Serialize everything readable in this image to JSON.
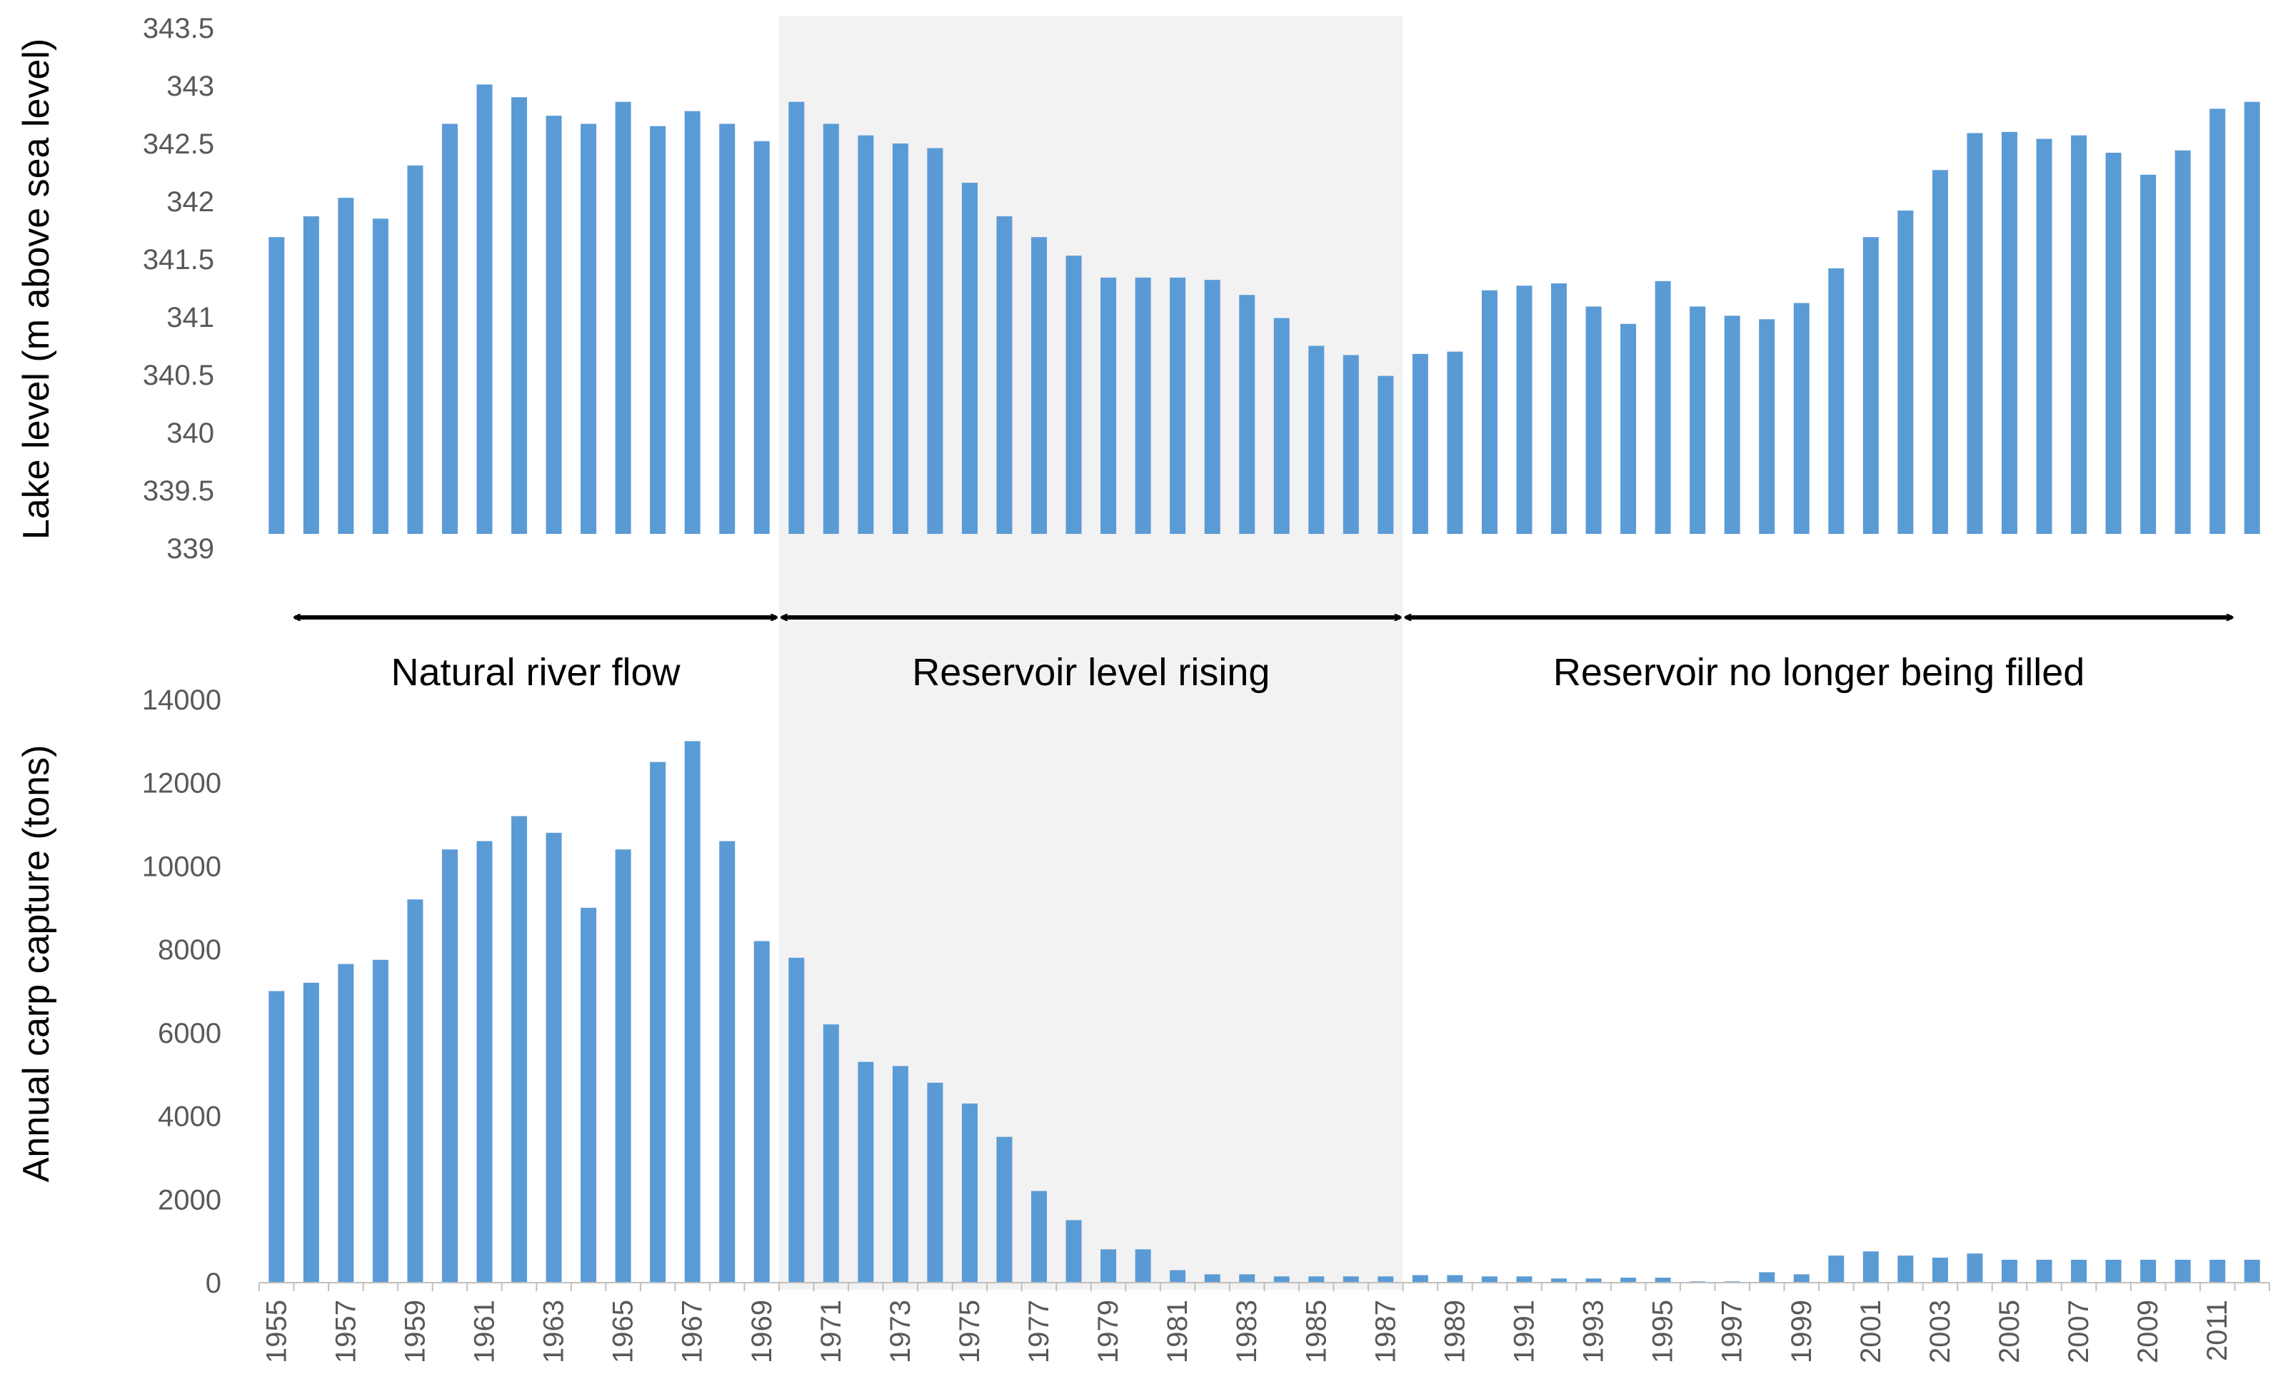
{
  "chart_data": [
    {
      "type": "bar",
      "title": "",
      "xlabel": "",
      "ylabel": "Lake level (m above sea level)",
      "ylim": [
        339,
        343.5
      ],
      "ytick_labels": [
        "339",
        "339.5",
        "340",
        "340.5",
        "341",
        "341.5",
        "342",
        "342.5",
        "343",
        "343.5"
      ],
      "grid": false,
      "bar_color": "#5b9bd5",
      "x": [
        1955,
        1956,
        1957,
        1958,
        1959,
        1960,
        1961,
        1962,
        1963,
        1964,
        1965,
        1966,
        1967,
        1968,
        1969,
        1970,
        1971,
        1972,
        1973,
        1974,
        1975,
        1976,
        1977,
        1978,
        1979,
        1980,
        1981,
        1982,
        1983,
        1984,
        1985,
        1986,
        1987,
        1988,
        1989,
        1990,
        1991,
        1992,
        1993,
        1994,
        1995,
        1996,
        1997,
        1998,
        1999,
        2000,
        2001,
        2002,
        2003,
        2004,
        2005,
        2006,
        2007,
        2008,
        2009,
        2010,
        2011,
        2012
      ],
      "values": [
        341.69,
        341.87,
        342.03,
        341.85,
        342.31,
        342.67,
        343.01,
        342.9,
        342.74,
        342.67,
        342.86,
        342.65,
        342.78,
        342.67,
        342.52,
        342.86,
        342.67,
        342.57,
        342.5,
        342.46,
        342.16,
        341.87,
        341.69,
        341.53,
        341.34,
        341.34,
        341.34,
        341.32,
        341.19,
        340.99,
        340.75,
        340.67,
        340.49,
        340.68,
        340.7,
        341.23,
        341.27,
        341.29,
        341.09,
        340.94,
        341.31,
        341.09,
        341.01,
        340.98,
        341.12,
        341.42,
        341.69,
        341.92,
        342.27,
        342.59,
        342.6,
        342.54,
        342.57,
        342.42,
        342.23,
        342.44,
        342.8,
        342.86
      ]
    },
    {
      "type": "bar",
      "title": "",
      "xlabel": "",
      "ylabel": "Annual carp capture (tons)",
      "ylim": [
        0,
        14000
      ],
      "ytick_labels": [
        "0",
        "2000",
        "4000",
        "6000",
        "8000",
        "10000",
        "12000",
        "14000"
      ],
      "grid": false,
      "bar_color": "#5b9bd5",
      "x": [
        1955,
        1956,
        1957,
        1958,
        1959,
        1960,
        1961,
        1962,
        1963,
        1964,
        1965,
        1966,
        1967,
        1968,
        1969,
        1970,
        1971,
        1972,
        1973,
        1974,
        1975,
        1976,
        1977,
        1978,
        1979,
        1980,
        1981,
        1982,
        1983,
        1984,
        1985,
        1986,
        1987,
        1988,
        1989,
        1990,
        1991,
        1992,
        1993,
        1994,
        1995,
        1996,
        1997,
        1998,
        1999,
        2000,
        2001,
        2002,
        2003,
        2004,
        2005,
        2006,
        2007,
        2008,
        2009,
        2010,
        2011,
        2012
      ],
      "x_tick_labels": [
        "1955",
        "1957",
        "1959",
        "1961",
        "1963",
        "1965",
        "1967",
        "1969",
        "1971",
        "1973",
        "1975",
        "1977",
        "1979",
        "1981",
        "1983",
        "1985",
        "1987",
        "1989",
        "1991",
        "1993",
        "1995",
        "1997",
        "1999",
        "2001",
        "2003",
        "2005",
        "2007",
        "2009",
        "2011"
      ],
      "values": [
        7000,
        7200,
        7650,
        7750,
        9200,
        10400,
        10600,
        11200,
        10800,
        9000,
        10400,
        12500,
        13000,
        10600,
        8200,
        7800,
        6200,
        5300,
        5200,
        4800,
        4300,
        3500,
        2200,
        1500,
        800,
        800,
        300,
        200,
        200,
        150,
        150,
        150,
        150,
        180,
        180,
        150,
        150,
        100,
        100,
        120,
        120,
        30,
        30,
        250,
        200,
        650,
        750,
        650,
        600,
        700,
        550,
        550,
        550,
        550,
        550,
        550,
        550,
        550
      ]
    }
  ],
  "phases": [
    {
      "label": "Natural river flow",
      "from": 1955,
      "to": 1970
    },
    {
      "label": "Reservoir  level rising",
      "from": 1970,
      "to": 1988
    },
    {
      "label": "Reservoir  no longer being filled",
      "from": 1988,
      "to": 2012
    }
  ],
  "shaded_period": {
    "from": 1970,
    "to": 1988,
    "color": "#f2f2f2"
  }
}
